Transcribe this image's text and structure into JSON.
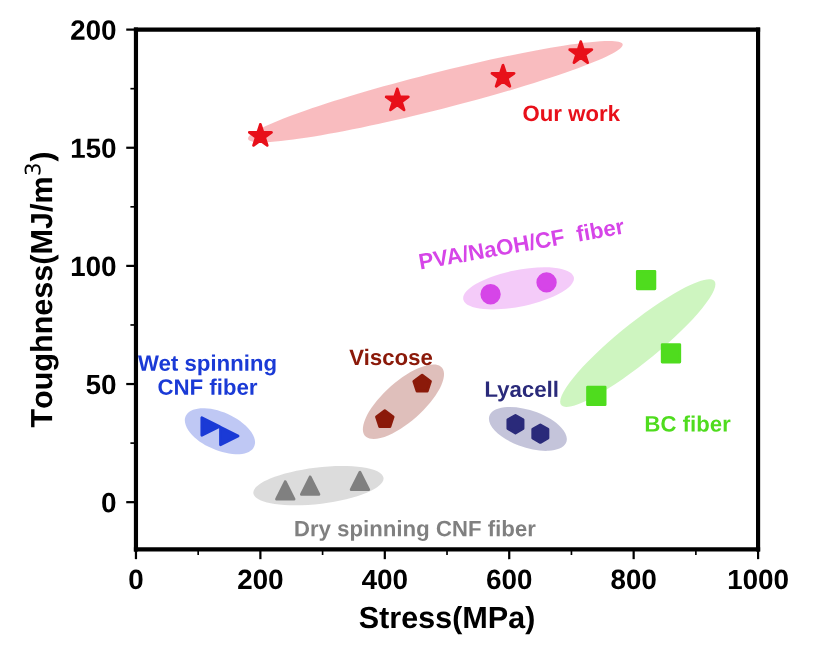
{
  "chart_data": {
    "type": "scatter",
    "xlabel": "Stress(MPa)",
    "ylabel": "Toughness(MJ/m$^{3}$)",
    "xlim": [
      0,
      1000
    ],
    "ylim": [
      -20,
      200
    ],
    "xticks": [
      0,
      200,
      400,
      600,
      800,
      1000
    ],
    "yticks": [
      0,
      50,
      100,
      150,
      200
    ],
    "grid": false,
    "legend": false,
    "series": [
      {
        "name": "Our work",
        "color": "#e8101a",
        "marker": "star",
        "x": [
          200,
          420,
          590,
          715
        ],
        "values": [
          155,
          170,
          180,
          190
        ]
      },
      {
        "name": "PVA/NaOH/CF  fiber",
        "color": "#d645e8",
        "marker": "circle",
        "x": [
          570,
          660
        ],
        "values": [
          88,
          93
        ]
      },
      {
        "name": "BC fiber",
        "color": "#4fdc1e",
        "marker": "square",
        "x": [
          820,
          860,
          740
        ],
        "values": [
          94,
          63,
          45
        ]
      },
      {
        "name": "Wet spinning\nCNF fiber",
        "color": "#1a3ad6",
        "marker": "triangle",
        "x": [
          120,
          150
        ],
        "values": [
          32,
          28
        ]
      },
      {
        "name": "Dry spinning CNF fiber",
        "color": "#808080",
        "marker": "triangle",
        "x": [
          240,
          280,
          360
        ],
        "values": [
          5,
          7,
          9
        ]
      },
      {
        "name": "Viscose",
        "color": "#8b1a0a",
        "x": [
          400,
          460
        ],
        "values": [
          35,
          50
        ]
      },
      {
        "name": "Lyacell",
        "color": "#2a2a7a",
        "x": [
          610,
          650
        ],
        "values": [
          33,
          29
        ]
      }
    ]
  }
}
